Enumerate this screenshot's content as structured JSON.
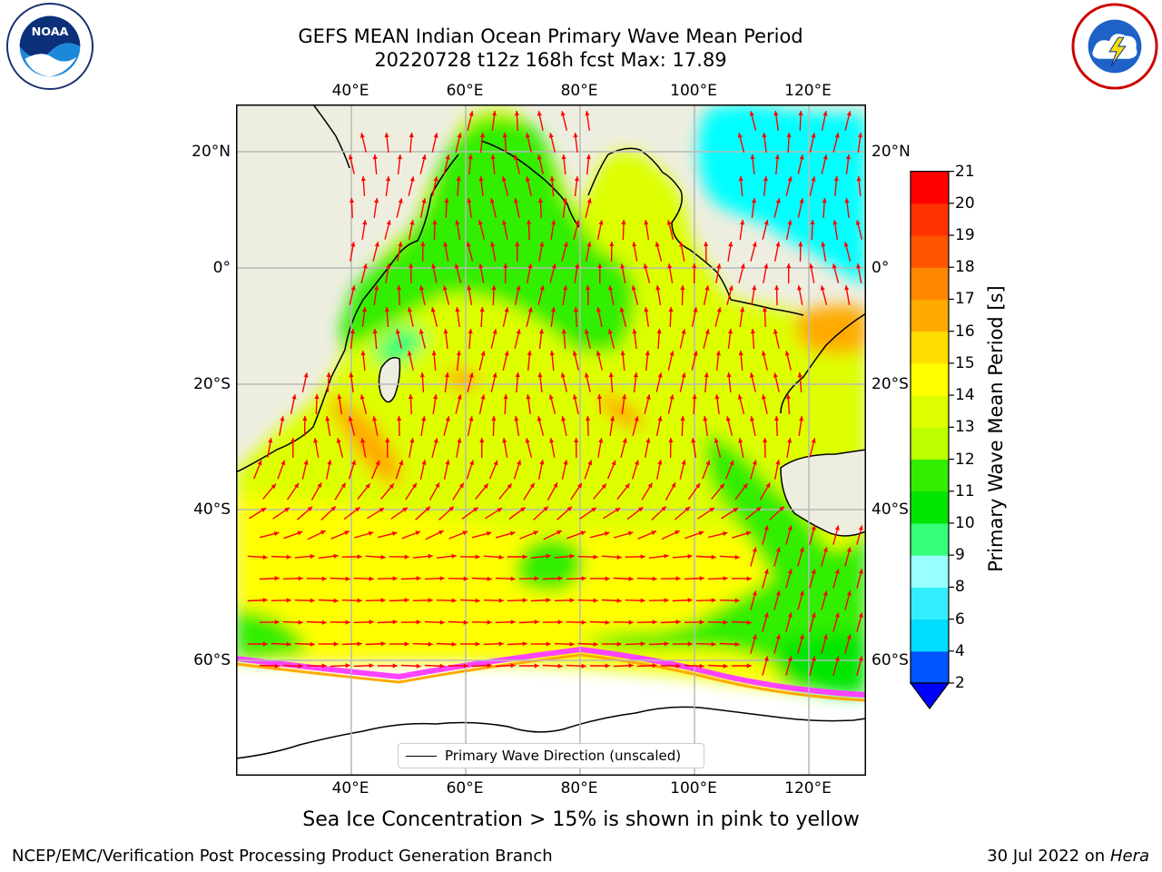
{
  "header": {
    "title_line1": "GEFS MEAN Indian Ocean Primary Wave Mean Period",
    "title_line2": "20220728 t12z 168h fcst   Max: 17.89"
  },
  "logos": {
    "left": {
      "text": "NOAA",
      "ring_top": "NATIONAL OCEANIC AND ATMOSPHERIC ADMINISTRATION",
      "ring_bottom": "U.S. DEPARTMENT OF COMMERCE"
    },
    "right": {
      "ring": "NATIONAL WEATHER SERVICE"
    }
  },
  "map": {
    "lon_ticks_top": [
      "40°E",
      "60°E",
      "80°E",
      "100°E",
      "120°E"
    ],
    "lon_ticks_bottom": [
      "40°E",
      "60°E",
      "80°E",
      "100°E",
      "120°E"
    ],
    "lat_ticks_left": [
      "20°N",
      "0°",
      "20°S",
      "40°S",
      "60°S"
    ],
    "lat_ticks_right": [
      "20°N",
      "0°",
      "20°S",
      "40°S",
      "60°S"
    ],
    "lon_values": [
      40,
      60,
      80,
      100,
      120
    ],
    "lat_values": [
      20,
      0,
      -20,
      -40,
      -60
    ],
    "extent": {
      "lon_min": 20,
      "lon_max": 130,
      "lat_min": -75,
      "lat_max": 28
    },
    "colors": {
      "land": "#eeeee0",
      "ice_free": "#ffffff",
      "arrow": "#ff0000",
      "grid": "#b8b8b8"
    }
  },
  "colorbar": {
    "label": "Primary Wave Mean Period [s]",
    "tick_labels": [
      "2",
      "4",
      "6",
      "8",
      "9",
      "10",
      "11",
      "12",
      "13",
      "14",
      "15",
      "16",
      "17",
      "18",
      "19",
      "20",
      "21"
    ],
    "colors": [
      "#0055ff",
      "#00ddff",
      "#33eeff",
      "#99ffff",
      "#33ff77",
      "#00e600",
      "#33ee00",
      "#bbff00",
      "#ddff00",
      "#ffff00",
      "#ffdd00",
      "#ffaa00",
      "#ff8800",
      "#ff5500",
      "#ff3300",
      "#ff0000"
    ],
    "under_color": "#0000ff"
  },
  "legend": {
    "label": "Primary Wave Direction (unscaled)"
  },
  "notes": {
    "sea_ice": "Sea Ice Concentration > 15% is shown in pink to yellow"
  },
  "footer": {
    "left": "NCEP/EMC/Verification Post Processing Product Generation Branch",
    "right_date": "30 Jul 2022 on ",
    "right_host": "Hera"
  }
}
